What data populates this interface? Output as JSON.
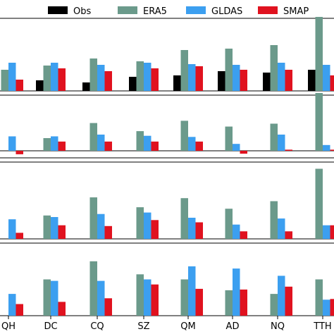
{
  "chart_data": {
    "type": "bar",
    "categories": [
      "QH",
      "DC",
      "CQ",
      "SZ",
      "QM",
      "AD",
      "NQ",
      "TTH"
    ],
    "series": [
      {
        "name": "Obs",
        "color": "#000000"
      },
      {
        "name": "ERA5",
        "color": "#6b9a8b"
      },
      {
        "name": "GLDAS",
        "color": "#3c9ff0"
      },
      {
        "name": "SMAP",
        "color": "#e0121f"
      }
    ],
    "panels": [
      {
        "baseline": "bottom",
        "values": {
          "Obs": [
            0.0,
            0.15,
            0.12,
            0.2,
            0.22,
            0.28,
            0.26,
            0.3
          ],
          "ERA5": [
            0.3,
            0.36,
            0.46,
            0.42,
            0.58,
            0.6,
            0.65,
            1.05
          ],
          "GLDAS": [
            0.4,
            0.4,
            0.37,
            0.4,
            0.38,
            0.37,
            0.4,
            0.37
          ],
          "SMAP": [
            0.16,
            0.32,
            0.28,
            0.32,
            0.35,
            0.3,
            0.3,
            0.22
          ]
        }
      },
      {
        "baseline": "zero-line",
        "values": {
          "ERA5": [
            0.0,
            0.22,
            0.48,
            0.34,
            0.52,
            0.42,
            0.47,
            1.0
          ],
          "GLDAS": [
            0.25,
            0.25,
            0.28,
            0.26,
            0.24,
            0.12,
            0.28,
            0.1
          ],
          "SMAP": [
            -0.06,
            0.16,
            0.16,
            0.16,
            0.16,
            -0.05,
            0.02,
            0.02
          ]
        }
      },
      {
        "baseline": "bottom",
        "values": {
          "ERA5": [
            0.0,
            0.31,
            0.55,
            0.42,
            0.54,
            0.4,
            0.5,
            0.93
          ],
          "GLDAS": [
            0.26,
            0.29,
            0.33,
            0.35,
            0.28,
            0.19,
            0.27,
            0.18
          ],
          "SMAP": [
            0.08,
            0.18,
            0.17,
            0.25,
            0.22,
            0.1,
            0.1,
            0.18
          ]
        }
      },
      {
        "baseline": "bottom",
        "values": {
          "ERA5": [
            0.0,
            0.5,
            0.75,
            0.57,
            0.5,
            0.35,
            0.3,
            0.5
          ],
          "GLDAS": [
            0.3,
            0.48,
            0.48,
            0.5,
            0.68,
            0.65,
            0.55,
            0.22
          ],
          "SMAP": [
            0.16,
            0.19,
            0.24,
            0.43,
            0.37,
            0.36,
            0.4,
            0.23
          ]
        }
      }
    ]
  }
}
